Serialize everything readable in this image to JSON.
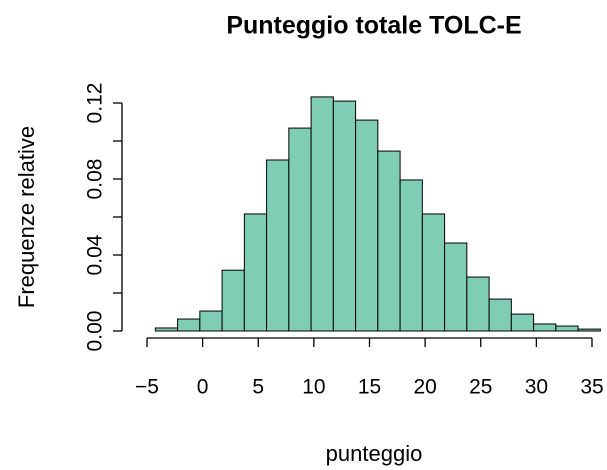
{
  "chart_data": {
    "type": "histogram",
    "title": "Punteggio totale TOLC-E",
    "xlabel": "punteggio",
    "ylabel": "Frequenze relative",
    "bins": [
      -4.25,
      -2.25,
      -0.25,
      1.75,
      3.75,
      5.75,
      7.75,
      9.75,
      11.75,
      13.75,
      15.75,
      17.75,
      19.75,
      21.75,
      23.75,
      25.75,
      27.75,
      29.75,
      31.75,
      33.75,
      35.75
    ],
    "values": [
      0.0016,
      0.0063,
      0.0105,
      0.032,
      0.0616,
      0.09,
      0.1068,
      0.1232,
      0.121,
      0.111,
      0.0947,
      0.0795,
      0.0616,
      0.0463,
      0.0284,
      0.0168,
      0.0089,
      0.0037,
      0.0026,
      0.001
    ],
    "color": "#7fcdb4",
    "xlim": [
      -5,
      35
    ],
    "xticks": [
      {
        "value": -5,
        "label": "−5"
      },
      0,
      5,
      10,
      15,
      20,
      25,
      30,
      35
    ],
    "ylim": [
      0,
      0.12
    ],
    "yticks": [
      {
        "value": 0,
        "label": "0.00"
      },
      {
        "value": 0.04,
        "label": "0.04"
      },
      {
        "value": 0.08,
        "label": "0.08"
      },
      {
        "value": 0.12,
        "label": "0.12"
      }
    ],
    "yminorticks": [
      0.02,
      0.06,
      0.1
    ]
  }
}
